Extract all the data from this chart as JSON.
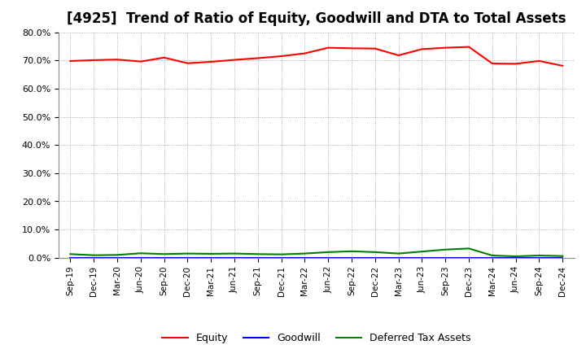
{
  "title": "[4925]  Trend of Ratio of Equity, Goodwill and DTA to Total Assets",
  "x_labels": [
    "Sep-19",
    "Dec-19",
    "Mar-20",
    "Jun-20",
    "Sep-20",
    "Dec-20",
    "Mar-21",
    "Jun-21",
    "Sep-21",
    "Dec-21",
    "Mar-22",
    "Jun-22",
    "Sep-22",
    "Dec-22",
    "Mar-23",
    "Jun-23",
    "Sep-23",
    "Dec-23",
    "Mar-24",
    "Jun-24",
    "Sep-24",
    "Dec-24"
  ],
  "equity": [
    69.8,
    70.1,
    70.3,
    69.6,
    71.0,
    69.0,
    69.5,
    70.2,
    70.8,
    71.5,
    72.5,
    74.5,
    74.3,
    74.2,
    71.8,
    74.0,
    74.5,
    74.8,
    68.9,
    68.8,
    69.8,
    68.1
  ],
  "goodwill": [
    0.0,
    0.0,
    0.0,
    0.0,
    0.0,
    0.0,
    0.0,
    0.0,
    0.0,
    0.0,
    0.0,
    0.0,
    0.0,
    0.0,
    0.0,
    0.0,
    0.0,
    0.0,
    0.0,
    0.0,
    0.0,
    0.0
  ],
  "dta": [
    1.3,
    0.9,
    1.0,
    1.6,
    1.3,
    1.5,
    1.4,
    1.5,
    1.3,
    1.2,
    1.5,
    2.0,
    2.3,
    2.0,
    1.5,
    2.2,
    2.9,
    3.3,
    0.8,
    0.5,
    0.8,
    0.6
  ],
  "equity_color": "#ff0000",
  "goodwill_color": "#0000ff",
  "dta_color": "#008000",
  "ylim": [
    0,
    80
  ],
  "yticks": [
    0,
    10,
    20,
    30,
    40,
    50,
    60,
    70,
    80
  ],
  "ytick_labels": [
    "0.0%",
    "10.0%",
    "20.0%",
    "30.0%",
    "40.0%",
    "50.0%",
    "60.0%",
    "70.0%",
    "80.0%"
  ],
  "bg_color": "#ffffff",
  "grid_color": "#999999",
  "title_fontsize": 12,
  "legend_labels": [
    "Equity",
    "Goodwill",
    "Deferred Tax Assets"
  ]
}
